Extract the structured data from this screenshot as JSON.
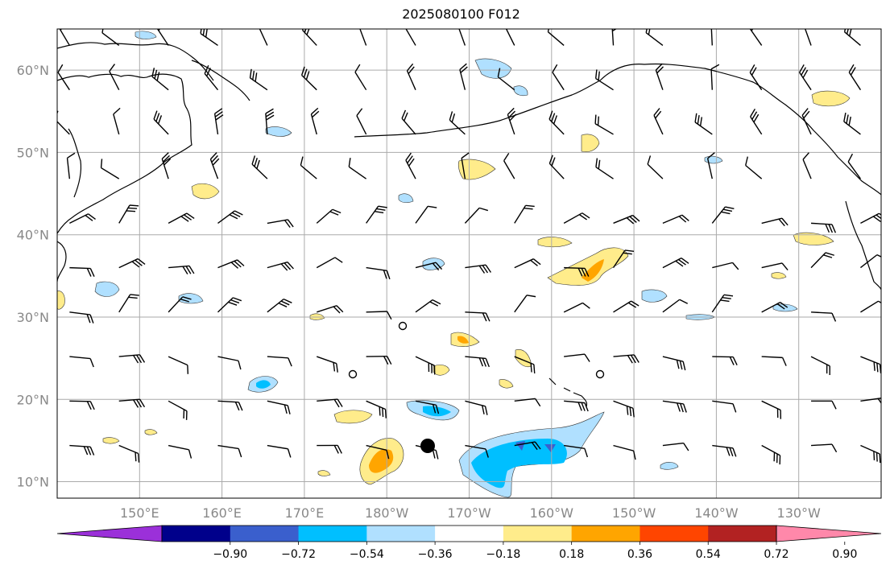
{
  "title": "2025080100 F012",
  "map": {
    "lat_labels": [
      {
        "text": "60°N",
        "lat": 60
      },
      {
        "text": "50°N",
        "lat": 50
      },
      {
        "text": "40°N",
        "lat": 40
      },
      {
        "text": "30°N",
        "lat": 30
      },
      {
        "text": "20°N",
        "lat": 20
      },
      {
        "text": "10°N",
        "lat": 10
      }
    ],
    "lon_labels": [
      {
        "text": "150°E",
        "lon": 150
      },
      {
        "text": "160°E",
        "lon": 160
      },
      {
        "text": "170°E",
        "lon": 170
      },
      {
        "text": "180°W",
        "lon": 180
      },
      {
        "text": "170°W",
        "lon": 190
      },
      {
        "text": "160°W",
        "lon": 200
      },
      {
        "text": "150°W",
        "lon": 210
      },
      {
        "text": "140°W",
        "lon": 220
      },
      {
        "text": "130°W",
        "lon": 230
      }
    ],
    "extent": {
      "lon_min": 140,
      "lon_max": 240,
      "lat_min": 8,
      "lat_max": 65
    },
    "colors": {
      "grid": "#aaaaaa",
      "land": "#000000"
    }
  },
  "colorbar": {
    "ticks": [
      "−0.90",
      "−0.72",
      "−0.54",
      "−0.36",
      "−0.18",
      "0.18",
      "0.36",
      "0.54",
      "0.72",
      "0.90"
    ],
    "colors": [
      "#9b30d9",
      "#00008b",
      "#3a5fcd",
      "#00bfff",
      "#b0e0ff",
      "#ffffff",
      "#ffec8b",
      "#ffa500",
      "#ff4500",
      "#b22222",
      "#ff88aa"
    ]
  }
}
